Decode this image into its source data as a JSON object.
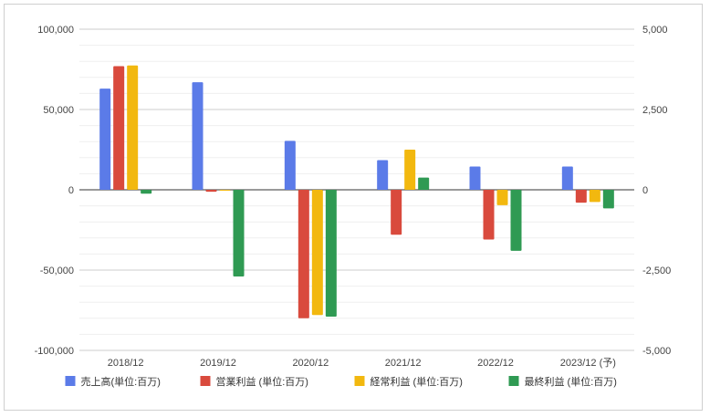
{
  "chart_data": {
    "type": "bar",
    "categories": [
      "2018/12",
      "2019/12",
      "2020/12",
      "2021/12",
      "2022/12",
      "2023/12 (予)"
    ],
    "series": [
      {
        "name": "売上高(単位:百万)",
        "axis": "left",
        "color": "#5b7be8",
        "values": [
          63000,
          67000,
          30500,
          18500,
          14500,
          14500
        ]
      },
      {
        "name": "営業利益 (単位:百万)",
        "axis": "right",
        "color": "#d94a3d",
        "values": [
          3850,
          -60,
          -4000,
          -1400,
          -1550,
          -400
        ]
      },
      {
        "name": "経常利益 (単位:百万)",
        "axis": "right",
        "color": "#f2b80f",
        "values": [
          3870,
          -30,
          -3900,
          1250,
          -480,
          -380
        ]
      },
      {
        "name": "最終利益 (単位:百万)",
        "axis": "right",
        "color": "#2f9a53",
        "values": [
          -120,
          -2700,
          -3950,
          380,
          -1900,
          -580
        ]
      }
    ],
    "y_left": {
      "min": -100000,
      "max": 100000,
      "ticks": [
        100000,
        50000,
        0,
        -50000,
        -100000
      ],
      "tick_labels": [
        "100,000",
        "50,000",
        "0",
        "-50,000",
        "-100,000"
      ]
    },
    "y_right": {
      "min": -5000,
      "max": 5000,
      "ticks": [
        5000,
        2500,
        0,
        -2500,
        -5000
      ],
      "tick_labels": [
        "5,000",
        "2,500",
        "0",
        "-2,500",
        "-5,000"
      ]
    },
    "grid": true,
    "legend": "bottom"
  }
}
